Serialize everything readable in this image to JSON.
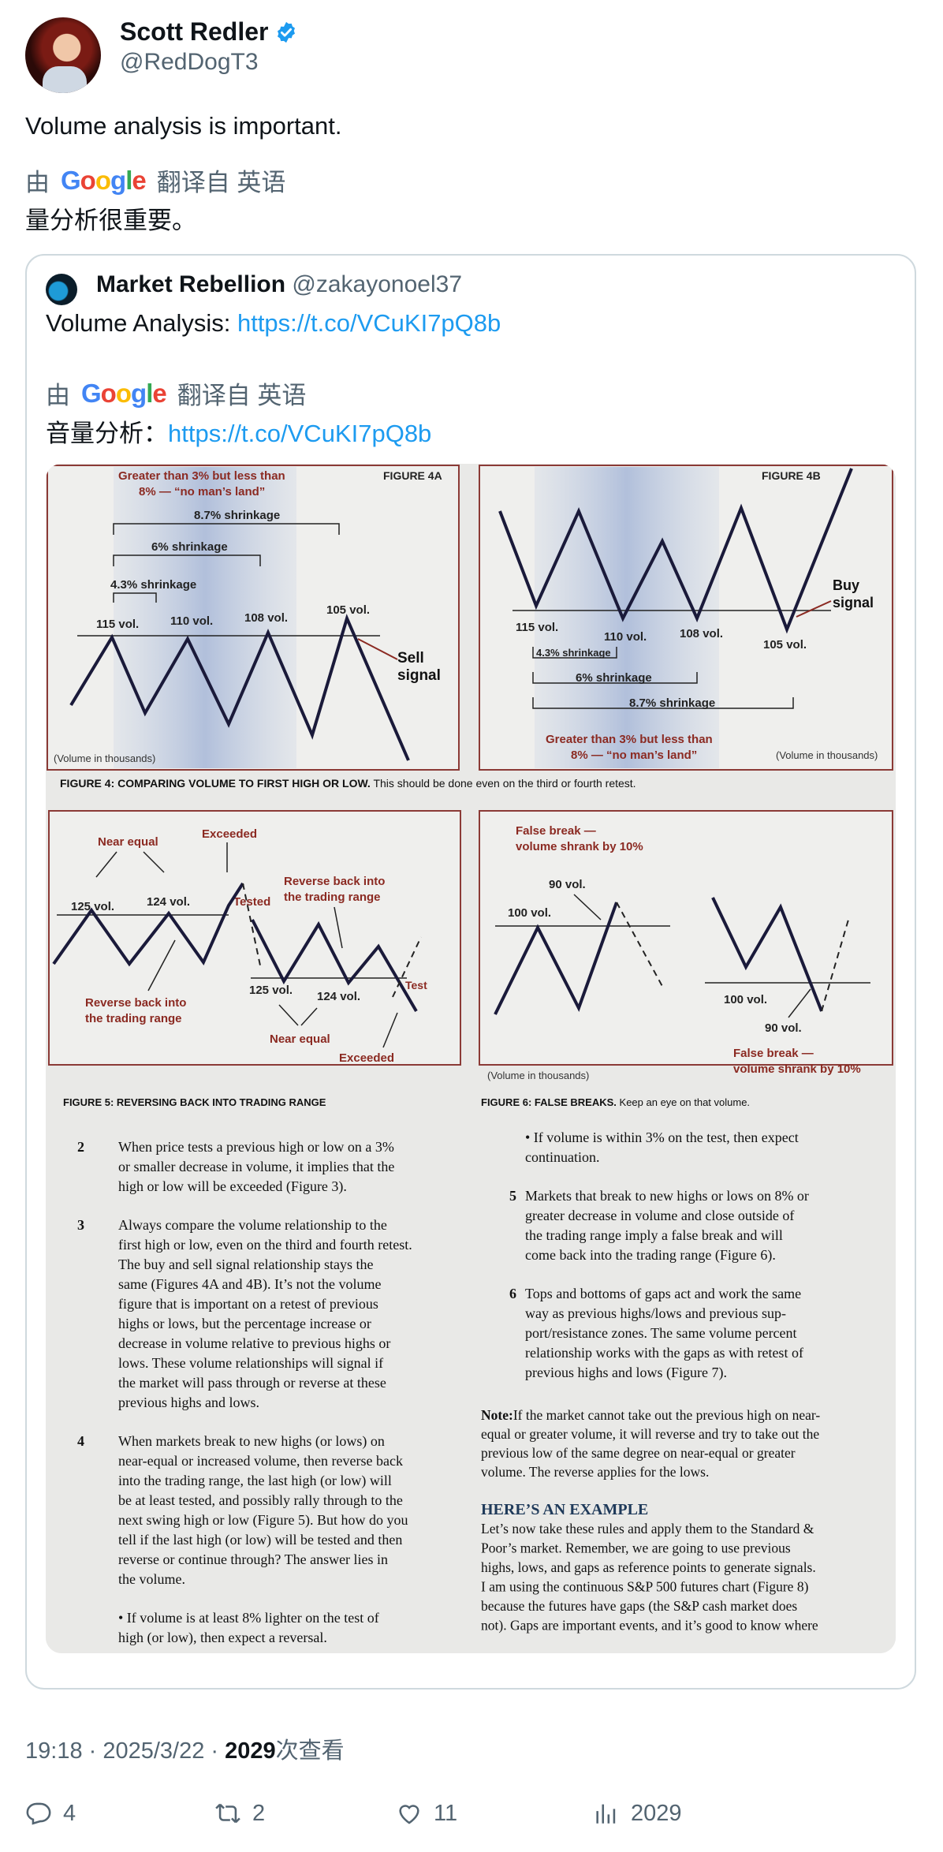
{
  "author": {
    "name": "Scott Redler",
    "handle": "@RedDogT3",
    "verified_color": "#1d9bf0"
  },
  "tweet": {
    "text": "Volume analysis is important.",
    "translate_prefix": "由",
    "translate_brand": "Google",
    "translate_suffix": "翻译自 英语",
    "translated_text": "量分析很重要。"
  },
  "quote": {
    "name": "Market Rebellion",
    "handle": "@zakayonoel37",
    "text_prefix": "Volume Analysis: ",
    "link": "https://t.co/VCuKI7pQ8b",
    "translate_prefix": "由",
    "translate_brand": "Google",
    "translate_suffix": "翻译自 英语",
    "translated_prefix": "音量分析：",
    "translated_link": "https://t.co/VCuKI7pQ8b"
  },
  "figure": {
    "fig4a": {
      "title": "FIGURE 4A",
      "zone": [
        "Greater than 3% but less than",
        "8% — “no man’s land”"
      ],
      "shrink": [
        "8.7% shrinkage",
        "6% shrinkage",
        "4.3% shrinkage"
      ],
      "vols": [
        "115 vol.",
        "110 vol.",
        "108 vol.",
        "105 vol."
      ],
      "signal": [
        "Sell",
        "signal"
      ],
      "unit": "(Volume in thousands)"
    },
    "fig4b": {
      "title": "FIGURE 4B",
      "vols": [
        "115 vol.",
        "110 vol.",
        "108 vol.",
        "105 vol."
      ],
      "signal": [
        "Buy",
        "signal"
      ],
      "shrink": [
        "4.3% shrinkage",
        "6% shrinkage",
        "8.7% shrinkage"
      ],
      "zone": [
        "Greater than 3% but less than",
        "8% — “no man’s land”"
      ],
      "unit": "(Volume in thousands)"
    },
    "fig4_caption_bold": "FIGURE 4: COMPARING VOLUME TO FIRST HIGH OR LOW.",
    "fig4_caption_rest": " This should be done even on the third or fourth retest.",
    "fig5": {
      "near_equal": "Near equal",
      "exceeded": "Exceeded",
      "tested": "Tested",
      "v125": "125 vol.",
      "v124": "124 vol.",
      "reverse_left": [
        "Reverse back into",
        "the trading range"
      ],
      "reverse_right": [
        "Reverse back into",
        "the trading range"
      ],
      "test": "Test",
      "near_equal_2": "Near equal",
      "exceeded_2": "Exceeded"
    },
    "fig5_caption": "FIGURE 5: REVERSING BACK INTO TRADING RANGE",
    "fig6": {
      "false_break_top": [
        "False break —",
        "volume shrank by 10%"
      ],
      "v90": "90 vol.",
      "v100": "100 vol.",
      "v100b": "100 vol.",
      "v90b": "90 vol.",
      "false_break_bottom": [
        "False break —",
        "volume shrank by 10%"
      ],
      "unit": "(Volume in thousands)"
    },
    "fig6_caption_bold": "FIGURE 6: FALSE BREAKS.",
    "fig6_caption_rest": " Keep an eye on that volume.",
    "left_col": [
      {
        "num": "2",
        "lines": [
          "When price tests a previous high or low on a 3%",
          "or smaller decrease in volume, it implies that the",
          "high or low will be exceeded (Figure 3)."
        ]
      },
      {
        "num": "3",
        "lines": [
          "Always compare the volume relationship to the",
          "first high or low, even on the third and fourth retest.",
          "The buy and sell signal relationship stays the",
          "same (Figures 4A and 4B). It’s not the volume",
          "figure that is important on a retest of previous",
          "highs or lows, but the percentage increase or",
          "decrease in volume relative to previous highs or",
          "lows. These volume relationships will signal if",
          "the market will pass through or reverse at these",
          "previous highs and lows."
        ]
      },
      {
        "num": "4",
        "lines": [
          "When markets break to new highs (or lows) on",
          "near-equal or increased volume, then reverse back",
          "into the trading range, the last high (or low) will",
          "be at least tested, and possibly rally through to the",
          "next swing high or low (Figure 5). But how do you",
          "tell if the last high (or low) will be tested and then",
          "reverse or continue through? The answer lies in",
          "the volume."
        ]
      },
      {
        "num": "",
        "lines": [
          "• If volume is at least 8% lighter on the test of",
          "high (or low), then expect a reversal."
        ]
      }
    ],
    "right_col": [
      {
        "num": "",
        "lines": [
          "• If volume is within 3% on the test, then expect",
          "continuation."
        ]
      },
      {
        "num": "5",
        "lines": [
          "Markets that break to new highs or lows on 8% or",
          "greater decrease in volume and close outside of",
          "the trading range imply a false break and will",
          "come back into the trading range (Figure 6)."
        ]
      },
      {
        "num": "6",
        "lines": [
          "Tops and bottoms of gaps act and work the same",
          "way as previous highs/lows and previous sup-",
          "port/resistance zones. The same volume percent",
          "relationship works with the gaps as with retest of",
          "previous highs and lows (Figure 7)."
        ]
      }
    ],
    "note_label": "Note:",
    "note_lines": [
      "If the market cannot take out the previous high on near-",
      "equal or greater volume, it will reverse and try to take out the",
      "previous low of the same degree on near-equal or greater",
      "volume. The reverse applies for the lows."
    ],
    "example_heading": "HERE’S AN EXAMPLE",
    "example_lines": [
      "Let’s now take these rules and apply them to the Standard &",
      "Poor’s market. Remember, we are going to use previous",
      "highs, lows, and gaps as reference points to generate signals.",
      "I am using the continuous S&P 500 futures chart (Figure 8)",
      "because the futures have gaps (the S&P cash market does",
      "not). Gaps are important events, and it’s good to know where"
    ]
  },
  "meta": {
    "time": "19:18 · 2025/3/22 · ",
    "views_count": "2029",
    "views_label": "次查看"
  },
  "actions": {
    "replies": "4",
    "retweets": "2",
    "likes": "11",
    "views": "2029"
  }
}
